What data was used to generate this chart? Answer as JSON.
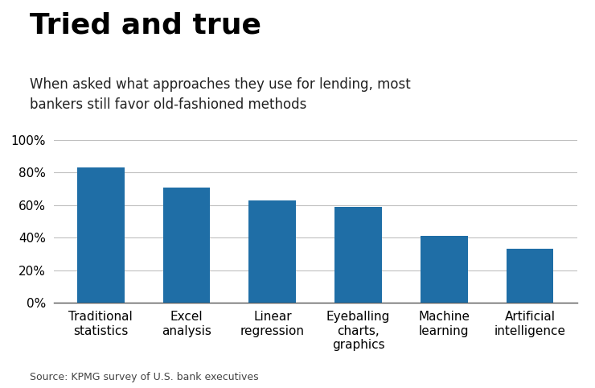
{
  "title": "Tried and true",
  "subtitle": "When asked what approaches they use for lending, most\nbankers still favor old-fashioned methods",
  "categories": [
    "Traditional\nstatistics",
    "Excel\nanalysis",
    "Linear\nregression",
    "Eyeballing\ncharts,\ngraphics",
    "Machine\nlearning",
    "Artificial\nintelligence"
  ],
  "values": [
    0.83,
    0.71,
    0.63,
    0.59,
    0.41,
    0.33
  ],
  "bar_color": "#1f6ea6",
  "yticks": [
    0.0,
    0.2,
    0.4,
    0.6,
    0.8,
    1.0
  ],
  "ytick_labels": [
    "0%",
    "20%",
    "40%",
    "60%",
    "80%",
    "100%"
  ],
  "ylim": [
    0,
    1.05
  ],
  "source": "Source: KPMG survey of U.S. bank executives",
  "background_color": "#ffffff",
  "title_fontsize": 26,
  "subtitle_fontsize": 12,
  "source_fontsize": 9,
  "tick_fontsize": 11,
  "bar_width": 0.55
}
